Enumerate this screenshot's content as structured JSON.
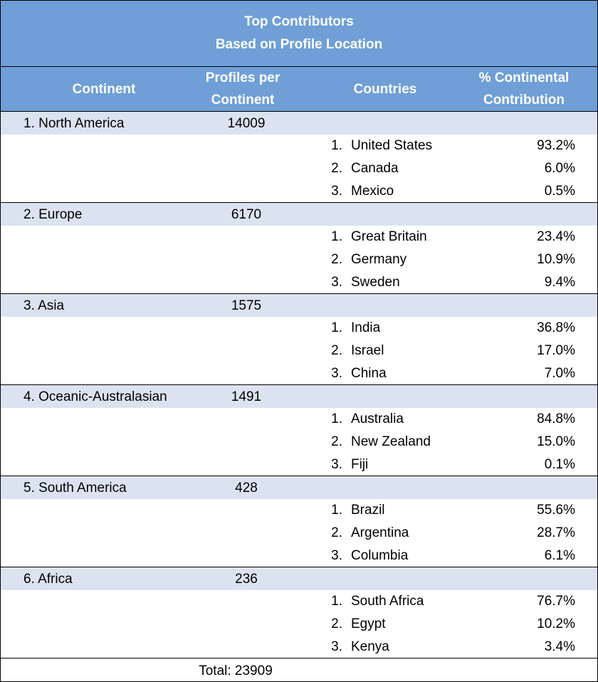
{
  "title": {
    "line1": "Top Contributors",
    "line2": "Based on Profile Location"
  },
  "headers": {
    "continent": "Continent",
    "profiles_line1": "Profiles per",
    "profiles_line2": "Continent",
    "countries": "Countries",
    "pct_line1": "% Continental",
    "pct_line2": "Contribution"
  },
  "continents": [
    {
      "name": "1. North America",
      "profiles": "14009",
      "countries": [
        {
          "num": "1.",
          "name": "United States",
          "pct": "93.2%"
        },
        {
          "num": "2.",
          "name": "Canada",
          "pct": "6.0%"
        },
        {
          "num": "3.",
          "name": "Mexico",
          "pct": "0.5%"
        }
      ]
    },
    {
      "name": "2. Europe",
      "profiles": "6170",
      "countries": [
        {
          "num": "1.",
          "name": "Great Britain",
          "pct": "23.4%"
        },
        {
          "num": "2.",
          "name": "Germany",
          "pct": "10.9%"
        },
        {
          "num": "3.",
          "name": "Sweden",
          "pct": "9.4%"
        }
      ]
    },
    {
      "name": "3. Asia",
      "profiles": "1575",
      "countries": [
        {
          "num": "1.",
          "name": "India",
          "pct": "36.8%"
        },
        {
          "num": "2.",
          "name": "Israel",
          "pct": "17.0%"
        },
        {
          "num": "3.",
          "name": "China",
          "pct": "7.0%"
        }
      ]
    },
    {
      "name": "4. Oceanic-Australasian",
      "profiles": "1491",
      "countries": [
        {
          "num": "1.",
          "name": "Australia",
          "pct": "84.8%"
        },
        {
          "num": "2.",
          "name": "New Zealand",
          "pct": "15.0%"
        },
        {
          "num": "3.",
          "name": "Fiji",
          "pct": "0.1%"
        }
      ]
    },
    {
      "name": "5. South America",
      "profiles": "428",
      "countries": [
        {
          "num": "1.",
          "name": "Brazil",
          "pct": "55.6%"
        },
        {
          "num": "2.",
          "name": "Argentina",
          "pct": "28.7%"
        },
        {
          "num": "3.",
          "name": "Columbia",
          "pct": "6.1%"
        }
      ]
    },
    {
      "name": "6. Africa",
      "profiles": "236",
      "countries": [
        {
          "num": "1.",
          "name": "South Africa",
          "pct": "76.7%"
        },
        {
          "num": "2.",
          "name": "Egypt",
          "pct": "10.2%"
        },
        {
          "num": "3.",
          "name": "Kenya",
          "pct": "3.4%"
        }
      ]
    }
  ],
  "total": "Total: 23909"
}
